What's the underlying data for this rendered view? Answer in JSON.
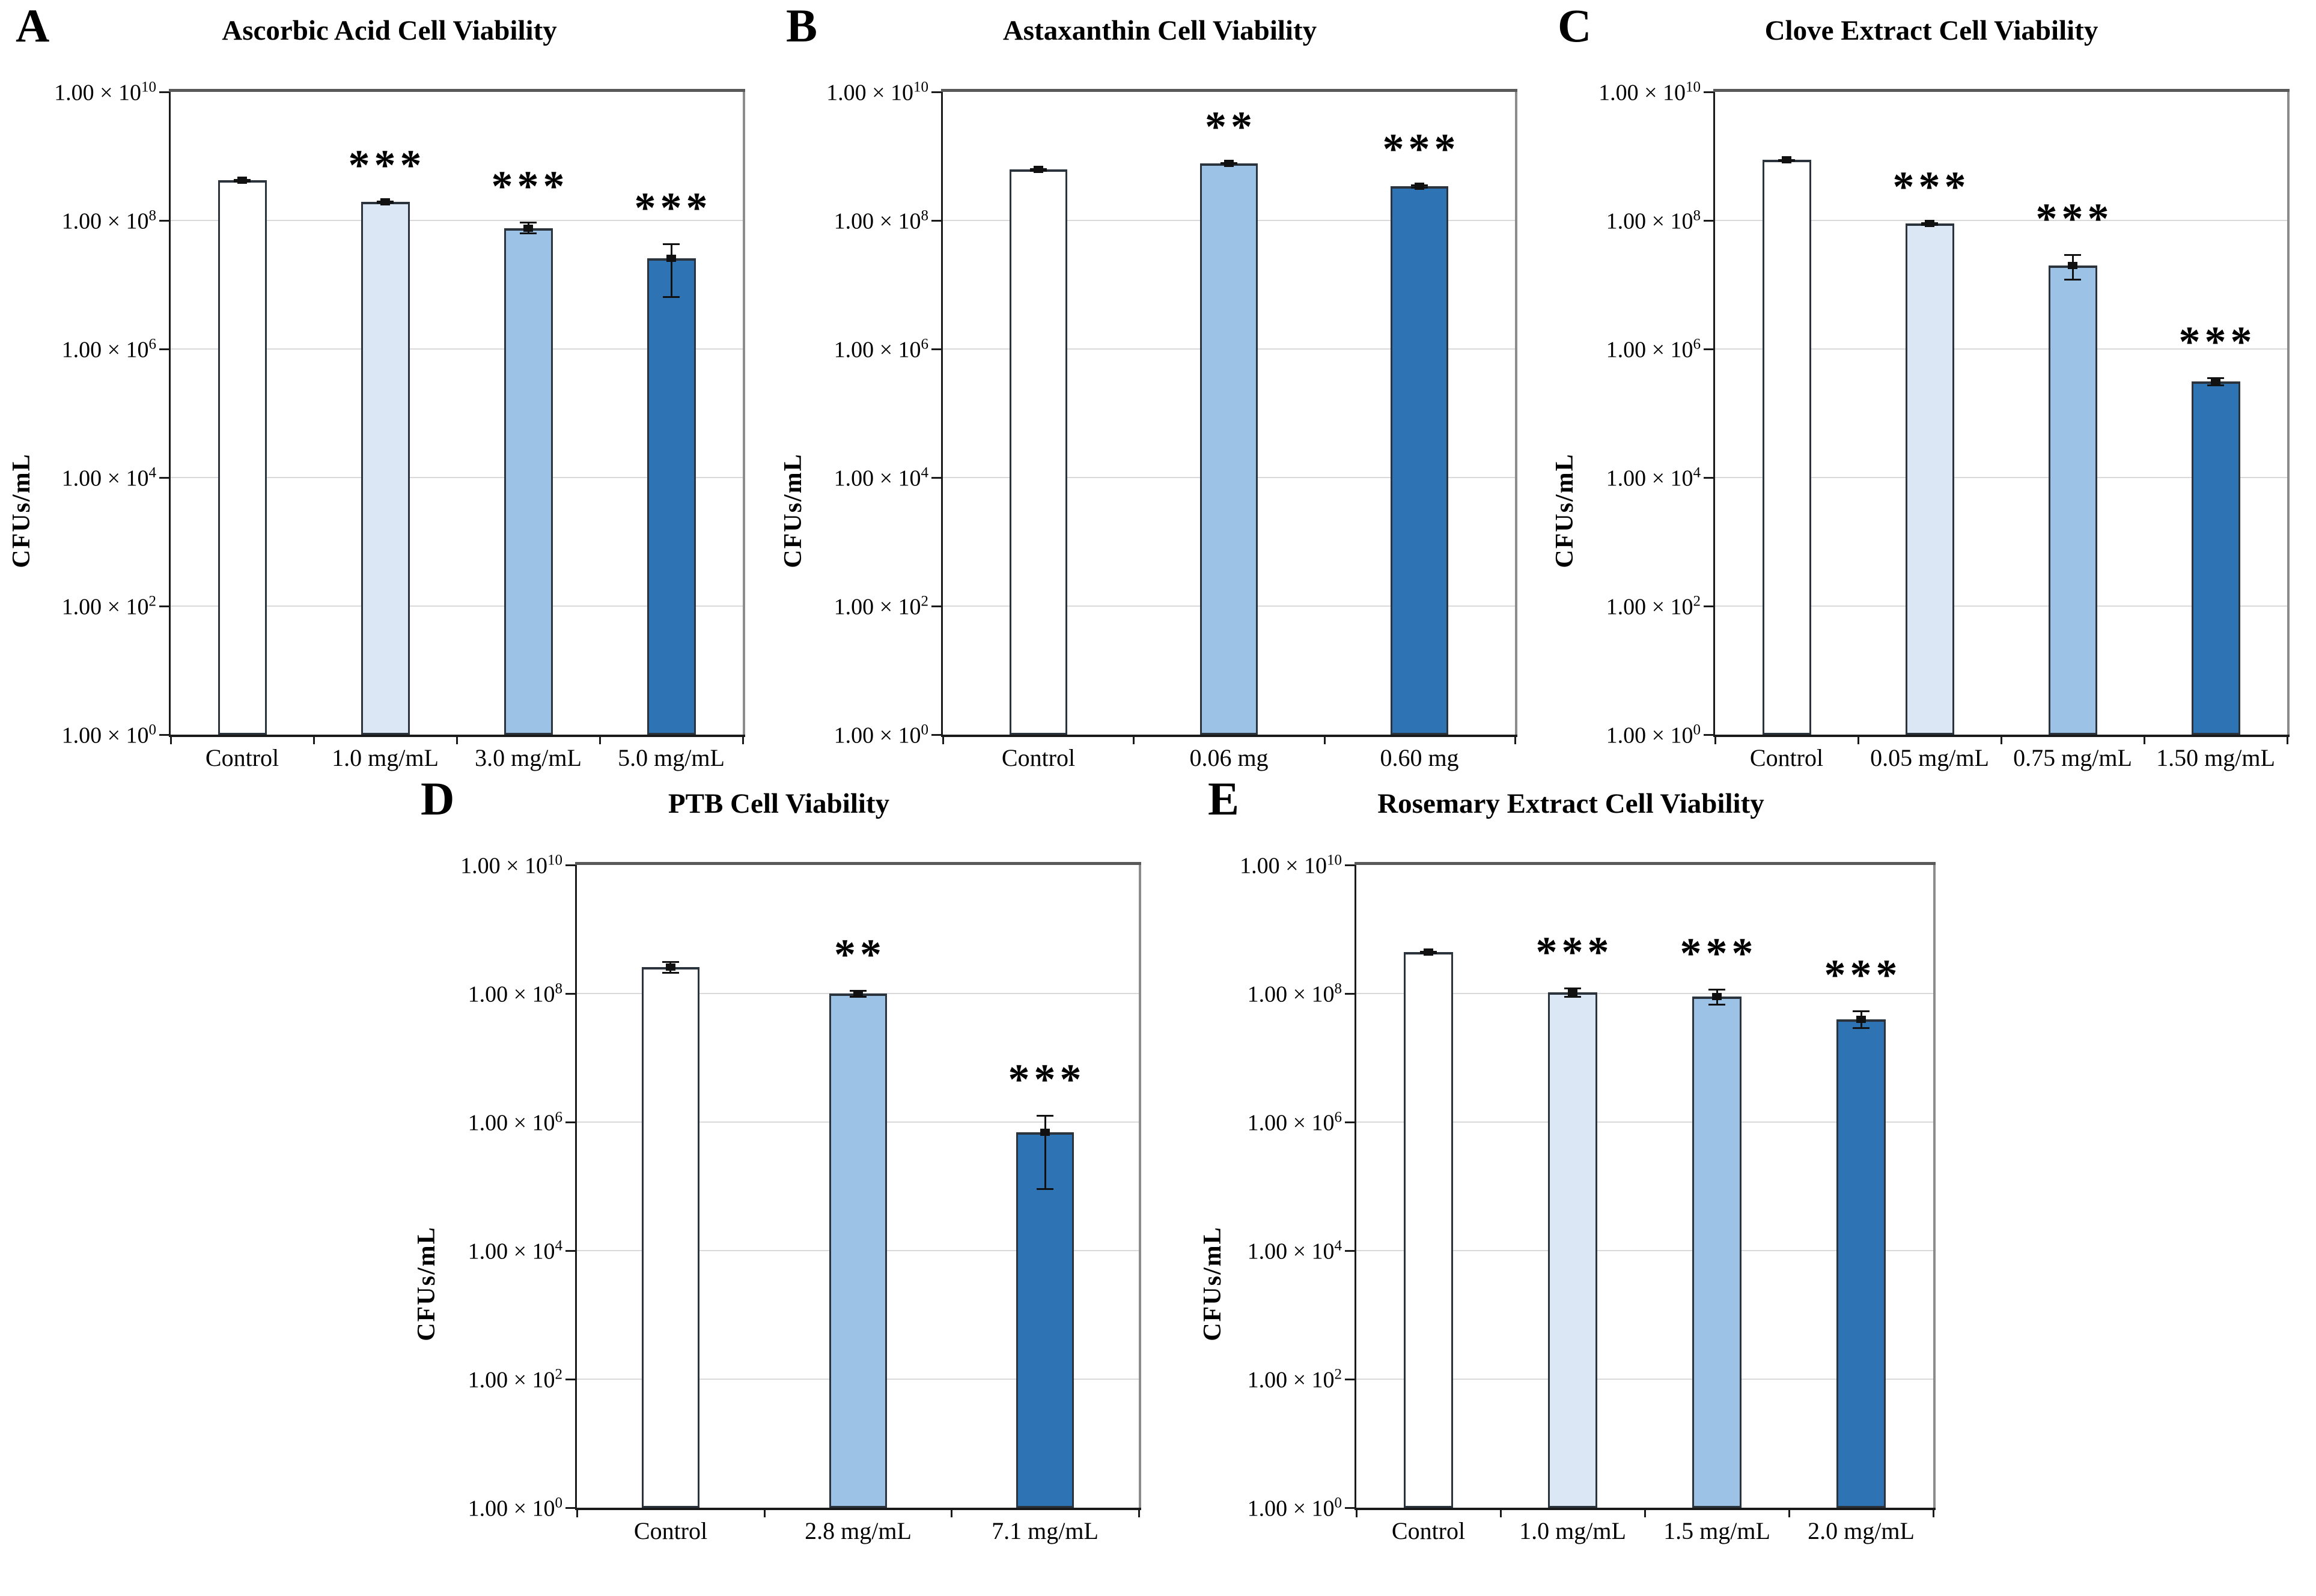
{
  "y_axis": {
    "label": "CFUs/mL",
    "tick_mantissa": "1.00 × 10",
    "tick_exponents": [
      10,
      8,
      6,
      4,
      2,
      0
    ],
    "scale": "log",
    "ylim": [
      1,
      10000000000
    ]
  },
  "colors": {
    "control_fill": "#ffffff",
    "low_dose_fill": "#dbe7f4",
    "mid_dose_fill": "#9cc2e5",
    "high_dose_fill": "#2e74b5",
    "bar_border": "#2b333c",
    "gridline": "#d9d9d9",
    "axis": "#1a1a1a",
    "box_top": "#595959",
    "box_right": "#8c8c8c",
    "error_bar": "#111111"
  },
  "chart_data": [
    {
      "panel": "A",
      "type": "bar",
      "title": "Ascorbic Acid Cell Viability",
      "ylabel": "CFUs/mL",
      "yscale": "log",
      "ylim": [
        1,
        10000000000.0
      ],
      "grid": true,
      "categories": [
        "Control",
        "1.0 mg/mL",
        "3.0 mg/mL",
        "5.0 mg/mL"
      ],
      "values": [
        420000000.0,
        195000000.0,
        76000000.0,
        26000000.0
      ],
      "error_high": [
        440000000.0,
        205000000.0,
        95000000.0,
        44000000.0
      ],
      "error_low": [
        400000000.0,
        185000000.0,
        62000000.0,
        6400000.0
      ],
      "significance": [
        "",
        "***",
        "***",
        "***"
      ],
      "bar_roles": [
        "control",
        "low",
        "mid",
        "high"
      ]
    },
    {
      "panel": "B",
      "type": "bar",
      "title": "Astaxanthin Cell Viability",
      "ylabel": "CFUs/mL",
      "yscale": "log",
      "ylim": [
        1,
        10000000000.0
      ],
      "grid": true,
      "categories": [
        "Control",
        "0.06 mg",
        "0.60 mg"
      ],
      "values": [
        620000000.0,
        780000000.0,
        340000000.0
      ],
      "error_high": [
        650000000.0,
        810000000.0,
        360000000.0
      ],
      "error_low": [
        590000000.0,
        750000000.0,
        320000000.0
      ],
      "significance": [
        "",
        "**",
        "***"
      ],
      "bar_roles": [
        "control",
        "mid",
        "high"
      ]
    },
    {
      "panel": "C",
      "type": "bar",
      "title": "Clove Extract Cell Viability",
      "ylabel": "CFUs/mL",
      "yscale": "log",
      "ylim": [
        1,
        10000000000.0
      ],
      "grid": true,
      "categories": [
        "Control",
        "0.05 mg/mL",
        "0.75 mg/mL",
        "1.50 mg/mL"
      ],
      "values": [
        870000000.0,
        89000000.0,
        20000000.0,
        310000.0
      ],
      "error_high": [
        900000000.0,
        94000000.0,
        30000000.0,
        360000.0
      ],
      "error_low": [
        840000000.0,
        84000000.0,
        12000000.0,
        270000.0
      ],
      "significance": [
        "",
        "***",
        "***",
        "***"
      ],
      "bar_roles": [
        "control",
        "low",
        "mid",
        "high"
      ]
    },
    {
      "panel": "D",
      "type": "bar",
      "title": "PTB Cell Viability",
      "ylabel": "CFUs/mL",
      "yscale": "log",
      "ylim": [
        1,
        10000000000.0
      ],
      "grid": true,
      "categories": [
        "Control",
        "2.8 mg/mL",
        "7.1 mg/mL"
      ],
      "values": [
        260000000.0,
        100000000.0,
        700000.0
      ],
      "error_high": [
        320000000.0,
        115000000.0,
        1300000.0
      ],
      "error_low": [
        210000000.0,
        87000000.0,
        90000.0
      ],
      "significance": [
        "",
        "**",
        "***"
      ],
      "bar_roles": [
        "control",
        "mid",
        "high"
      ]
    },
    {
      "panel": "E",
      "type": "bar",
      "title": "Rosemary Extract Cell Viability",
      "ylabel": "CFUs/mL",
      "yscale": "log",
      "ylim": [
        1,
        10000000000.0
      ],
      "grid": true,
      "categories": [
        "Control",
        "1.0 mg/mL",
        "1.5 mg/mL",
        "2.0 mg/mL"
      ],
      "values": [
        440000000.0,
        105000000.0,
        90000000.0,
        40000000.0
      ],
      "error_high": [
        460000000.0,
        125000000.0,
        120000000.0,
        55000000.0
      ],
      "error_low": [
        420000000.0,
        88000000.0,
        66000000.0,
        29000000.0
      ],
      "significance": [
        "",
        "***",
        "***",
        "***"
      ],
      "bar_roles": [
        "control",
        "low",
        "mid",
        "high"
      ]
    }
  ]
}
